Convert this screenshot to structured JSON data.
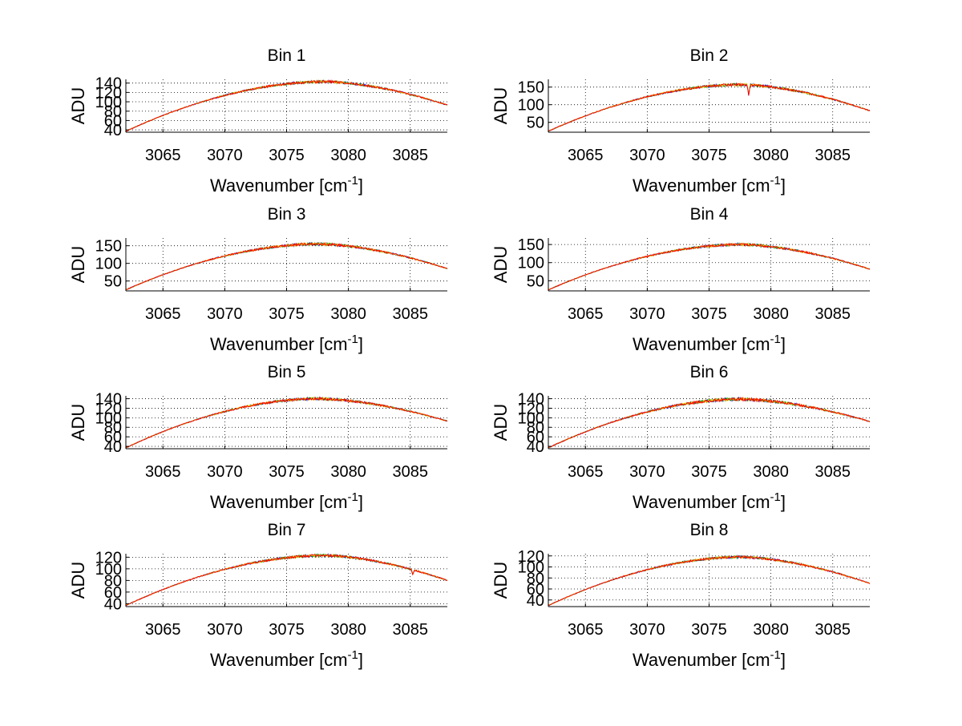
{
  "figure": {
    "background": "#ffffff"
  },
  "chart_data": [
    {
      "type": "line",
      "title": "Bin 1",
      "xlabel": "Wavenumber [cm",
      "xlabel_sup": "-1",
      "xlabel_close": "]",
      "ylabel": "ADU",
      "xlim": [
        3062,
        3088
      ],
      "ylim": [
        35,
        148
      ],
      "xticks": [
        3065,
        3070,
        3075,
        3080,
        3085
      ],
      "yticks": [
        40,
        60,
        80,
        100,
        120,
        140
      ],
      "grid": true,
      "series_colors": [
        "#0000ff",
        "#00a000",
        "#ffcc00",
        "#ff0000"
      ],
      "peak_x": 3078,
      "peak_y": 143,
      "y_start": 37,
      "y_end": 93,
      "noise_amp": 2.2,
      "dip_x": null,
      "dip_depth": 0
    },
    {
      "type": "line",
      "title": "Bin 2",
      "xlabel": "Wavenumber [cm",
      "xlabel_sup": "-1",
      "xlabel_close": "]",
      "ylabel": "ADU",
      "xlim": [
        3062,
        3088
      ],
      "ylim": [
        22,
        172
      ],
      "xticks": [
        3065,
        3070,
        3075,
        3080,
        3085
      ],
      "yticks": [
        50,
        100,
        150
      ],
      "grid": true,
      "series_colors": [
        "#0000ff",
        "#00a000",
        "#ffcc00",
        "#ff0000"
      ],
      "peak_x": 3077.5,
      "peak_y": 157,
      "y_start": 25,
      "y_end": 83,
      "noise_amp": 3.0,
      "dip_x": 3078.2,
      "dip_depth": 28
    },
    {
      "type": "line",
      "title": "Bin 3",
      "xlabel": "Wavenumber [cm",
      "xlabel_sup": "-1",
      "xlabel_close": "]",
      "ylabel": "ADU",
      "xlim": [
        3062,
        3088
      ],
      "ylim": [
        22,
        172
      ],
      "xticks": [
        3065,
        3070,
        3075,
        3080,
        3085
      ],
      "yticks": [
        50,
        100,
        150
      ],
      "grid": true,
      "series_colors": [
        "#0000ff",
        "#00a000",
        "#ffcc00",
        "#ff0000"
      ],
      "peak_x": 3077.5,
      "peak_y": 155,
      "y_start": 25,
      "y_end": 85,
      "noise_amp": 3.0,
      "dip_x": null,
      "dip_depth": 0
    },
    {
      "type": "line",
      "title": "Bin 4",
      "xlabel": "Wavenumber [cm",
      "xlabel_sup": "-1",
      "xlabel_close": "]",
      "ylabel": "ADU",
      "xlim": [
        3062,
        3088
      ],
      "ylim": [
        22,
        168
      ],
      "xticks": [
        3065,
        3070,
        3075,
        3080,
        3085
      ],
      "yticks": [
        50,
        100,
        150
      ],
      "grid": true,
      "series_colors": [
        "#0000ff",
        "#00a000",
        "#ffcc00",
        "#ff0000"
      ],
      "peak_x": 3077.5,
      "peak_y": 150,
      "y_start": 25,
      "y_end": 82,
      "noise_amp": 2.8,
      "dip_x": null,
      "dip_depth": 0
    },
    {
      "type": "line",
      "title": "Bin 5",
      "xlabel": "Wavenumber [cm",
      "xlabel_sup": "-1",
      "xlabel_close": "]",
      "ylabel": "ADU",
      "xlim": [
        3062,
        3088
      ],
      "ylim": [
        35,
        146
      ],
      "xticks": [
        3065,
        3070,
        3075,
        3080,
        3085
      ],
      "yticks": [
        40,
        60,
        80,
        100,
        120,
        140
      ],
      "grid": true,
      "series_colors": [
        "#0000ff",
        "#00a000",
        "#ffcc00",
        "#ff0000"
      ],
      "peak_x": 3077.5,
      "peak_y": 140,
      "y_start": 37,
      "y_end": 93,
      "noise_amp": 2.2,
      "dip_x": null,
      "dip_depth": 0
    },
    {
      "type": "line",
      "title": "Bin 6",
      "xlabel": "Wavenumber [cm",
      "xlabel_sup": "-1",
      "xlabel_close": "]",
      "ylabel": "ADU",
      "xlim": [
        3062,
        3088
      ],
      "ylim": [
        35,
        146
      ],
      "xticks": [
        3065,
        3070,
        3075,
        3080,
        3085
      ],
      "yticks": [
        40,
        60,
        80,
        100,
        120,
        140
      ],
      "grid": true,
      "series_colors": [
        "#0000ff",
        "#00a000",
        "#ffcc00",
        "#ff0000"
      ],
      "peak_x": 3077.5,
      "peak_y": 139,
      "y_start": 37,
      "y_end": 92,
      "noise_amp": 2.6,
      "dip_x": null,
      "dip_depth": 0
    },
    {
      "type": "line",
      "title": "Bin 7",
      "xlabel": "Wavenumber [cm",
      "xlabel_sup": "-1",
      "xlabel_close": "]",
      "ylabel": "ADU",
      "xlim": [
        3062,
        3088
      ],
      "ylim": [
        35,
        126
      ],
      "xticks": [
        3065,
        3070,
        3075,
        3080,
        3085
      ],
      "yticks": [
        40,
        60,
        80,
        100,
        120
      ],
      "grid": true,
      "series_colors": [
        "#0000ff",
        "#00a000",
        "#ffcc00",
        "#ff0000"
      ],
      "peak_x": 3078,
      "peak_y": 123,
      "y_start": 37,
      "y_end": 80,
      "noise_amp": 1.8,
      "dip_x": 3085.2,
      "dip_depth": 8
    },
    {
      "type": "line",
      "title": "Bin 8",
      "xlabel": "Wavenumber [cm",
      "xlabel_sup": "-1",
      "xlabel_close": "]",
      "ylabel": "ADU",
      "xlim": [
        3062,
        3088
      ],
      "ylim": [
        28,
        124
      ],
      "xticks": [
        3065,
        3070,
        3075,
        3080,
        3085
      ],
      "yticks": [
        40,
        60,
        80,
        100,
        120
      ],
      "grid": true,
      "series_colors": [
        "#0000ff",
        "#00a000",
        "#ffcc00",
        "#ff0000"
      ],
      "peak_x": 3077.5,
      "peak_y": 118,
      "y_start": 30,
      "y_end": 70,
      "noise_amp": 1.8,
      "dip_x": null,
      "dip_depth": 0
    }
  ]
}
